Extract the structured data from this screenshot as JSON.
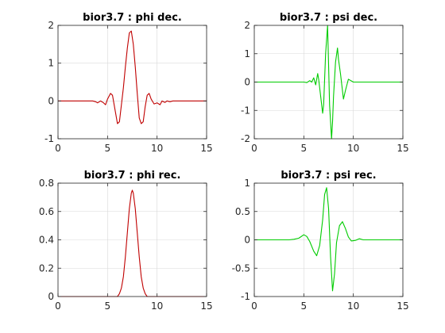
{
  "chart_data": [
    {
      "type": "line",
      "title": "bior3.7 : phi dec.",
      "xlim": [
        0,
        15
      ],
      "ylim": [
        -1,
        2
      ],
      "xticks": [
        0,
        5,
        10,
        15
      ],
      "yticks": [
        -1,
        0,
        1,
        2
      ],
      "grid": true,
      "color": "#c00000",
      "series": [
        {
          "x": [
            0,
            3.5,
            3.8,
            4.0,
            4.3,
            4.6,
            4.8,
            5.0,
            5.3,
            5.5,
            5.8,
            6.0,
            6.2,
            6.4,
            6.6,
            6.8,
            7.0,
            7.2,
            7.4,
            7.6,
            7.8,
            8.0,
            8.2,
            8.4,
            8.6,
            8.8,
            9.0,
            9.2,
            9.4,
            9.7,
            10.0,
            10.3,
            10.5,
            10.8,
            11.0,
            11.3,
            11.6,
            12.0,
            15
          ],
          "y": [
            0,
            0,
            -0.02,
            -0.05,
            0.0,
            -0.05,
            -0.1,
            0.05,
            0.2,
            0.15,
            -0.3,
            -0.6,
            -0.55,
            -0.1,
            0.35,
            0.9,
            1.4,
            1.8,
            1.85,
            1.5,
            0.9,
            0.2,
            -0.45,
            -0.6,
            -0.55,
            -0.15,
            0.15,
            0.2,
            0.05,
            -0.08,
            -0.05,
            -0.1,
            0.0,
            -0.04,
            0.0,
            -0.02,
            0.0,
            0.0,
            0
          ]
        }
      ]
    },
    {
      "type": "line",
      "title": "bior3.7 : psi dec.",
      "xlim": [
        0,
        15
      ],
      "ylim": [
        -2,
        2
      ],
      "xticks": [
        0,
        5,
        10,
        15
      ],
      "yticks": [
        -2,
        -1,
        0,
        1,
        2
      ],
      "grid": true,
      "color": "#00cc00",
      "series": [
        {
          "x": [
            0,
            5.0,
            5.3,
            5.6,
            5.8,
            6.0,
            6.2,
            6.4,
            6.5,
            6.7,
            6.9,
            7.0,
            7.2,
            7.4,
            7.5,
            7.6,
            7.8,
            7.9,
            8.0,
            8.2,
            8.4,
            8.5,
            8.7,
            8.9,
            9.0,
            9.2,
            9.5,
            10.0,
            10.5,
            15
          ],
          "y": [
            0,
            0,
            -0.02,
            0.05,
            0.0,
            0.15,
            -0.1,
            0.3,
            0.1,
            -0.5,
            -1.1,
            -0.8,
            1.0,
            2.0,
            0.6,
            -0.8,
            -2.0,
            -1.4,
            -0.5,
            0.7,
            1.2,
            0.8,
            0.3,
            -0.3,
            -0.6,
            -0.3,
            0.1,
            0.0,
            0.0,
            0
          ]
        }
      ]
    },
    {
      "type": "line",
      "title": "bior3.7 : phi rec.",
      "xlim": [
        0,
        15
      ],
      "ylim": [
        0,
        0.8
      ],
      "xticks": [
        0,
        5,
        10,
        15
      ],
      "yticks": [
        0,
        0.2,
        0.4,
        0.6,
        0.8
      ],
      "grid": true,
      "color": "#c00000",
      "series": [
        {
          "x": [
            0,
            6.0,
            6.2,
            6.4,
            6.6,
            6.8,
            7.0,
            7.2,
            7.4,
            7.5,
            7.6,
            7.8,
            8.0,
            8.2,
            8.4,
            8.6,
            8.8,
            9.0,
            15
          ],
          "y": [
            0,
            0,
            0.02,
            0.06,
            0.14,
            0.28,
            0.45,
            0.62,
            0.73,
            0.75,
            0.73,
            0.62,
            0.45,
            0.28,
            0.14,
            0.06,
            0.02,
            0,
            0
          ]
        }
      ]
    },
    {
      "type": "line",
      "title": "bior3.7 : psi rec.",
      "xlim": [
        0,
        15
      ],
      "ylim": [
        -1,
        1
      ],
      "xticks": [
        0,
        5,
        10,
        15
      ],
      "yticks": [
        -1,
        -0.5,
        0,
        0.5,
        1
      ],
      "grid": true,
      "color": "#00cc00",
      "series": [
        {
          "x": [
            0,
            3.5,
            4.0,
            4.5,
            5.0,
            5.3,
            5.6,
            6.0,
            6.3,
            6.6,
            6.9,
            7.1,
            7.3,
            7.5,
            7.7,
            7.9,
            8.1,
            8.3,
            8.6,
            8.9,
            9.2,
            9.5,
            9.8,
            10.2,
            10.6,
            11.0,
            11.5,
            15
          ],
          "y": [
            0,
            0,
            0.01,
            0.03,
            0.09,
            0.06,
            -0.03,
            -0.2,
            -0.28,
            -0.1,
            0.35,
            0.8,
            0.92,
            0.55,
            -0.3,
            -0.9,
            -0.6,
            -0.05,
            0.25,
            0.32,
            0.2,
            0.05,
            -0.02,
            -0.01,
            0.02,
            0.0,
            0.0,
            0
          ]
        }
      ]
    }
  ]
}
